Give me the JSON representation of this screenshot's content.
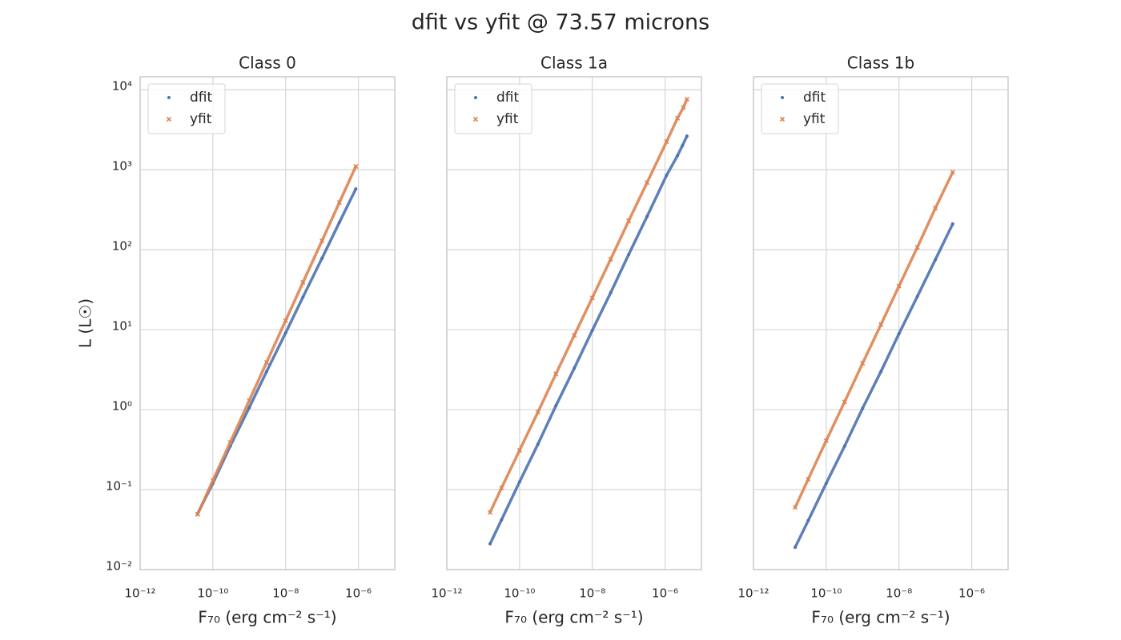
{
  "title": "dfit vs yfit @ 73.57 microns",
  "chart_data": [
    {
      "type": "scatter",
      "title": "Class 0",
      "xlabel": "F₇₀ (erg cm⁻² s⁻¹)",
      "ylabel": "L (L☉)",
      "xscale": "log",
      "yscale": "log",
      "grid": true,
      "legend": "upper left",
      "xlim": [
        1e-12,
        1e-05
      ],
      "ylim": [
        0.01,
        14500
      ],
      "xticks": [
        {
          "value": 1e-12,
          "label": "10⁻¹²"
        },
        {
          "value": 1e-10,
          "label": "10⁻¹⁰"
        },
        {
          "value": 1e-08,
          "label": "10⁻⁸"
        },
        {
          "value": 1e-06,
          "label": "10⁻⁶"
        }
      ],
      "yticks": [
        {
          "value": 0.01,
          "label": "10⁻²"
        },
        {
          "value": 0.1,
          "label": "10⁻¹"
        },
        {
          "value": 1,
          "label": "10⁰"
        },
        {
          "value": 10,
          "label": "10¹"
        },
        {
          "value": 100,
          "label": "10²"
        },
        {
          "value": 1000,
          "label": "10³"
        },
        {
          "value": 10000,
          "label": "10⁴"
        }
      ],
      "series": [
        {
          "name": "dfit",
          "color": "#4c72b0",
          "marker": "dot",
          "x": [
            3.8e-11,
            1e-10,
            3e-10,
            1e-09,
            3e-09,
            1e-08,
            3e-08,
            1e-07,
            3e-07,
            8.5e-07
          ],
          "values": [
            0.05,
            0.12,
            0.35,
            1.06,
            3.0,
            9.1,
            25.6,
            78,
            219,
            575
          ]
        },
        {
          "name": "yfit",
          "color": "#dd8452",
          "marker": "x",
          "x": [
            3.8e-11,
            1e-10,
            3e-10,
            1e-09,
            3e-09,
            1e-08,
            3e-08,
            1e-07,
            3e-07,
            8.5e-07
          ],
          "values": [
            0.049,
            0.13,
            0.39,
            1.3,
            3.9,
            13,
            39,
            129,
            389,
            1100
          ]
        }
      ]
    },
    {
      "type": "scatter",
      "title": "Class 1a",
      "xlabel": "F₇₀ (erg cm⁻² s⁻¹)",
      "xscale": "log",
      "yscale": "log",
      "grid": true,
      "legend": "upper left",
      "xlim": [
        1e-12,
        1e-05
      ],
      "ylim": [
        0.01,
        14500
      ],
      "xticks": [
        {
          "value": 1e-12,
          "label": "10⁻¹²"
        },
        {
          "value": 1e-10,
          "label": "10⁻¹⁰"
        },
        {
          "value": 1e-08,
          "label": "10⁻⁸"
        },
        {
          "value": 1e-06,
          "label": "10⁻⁶"
        }
      ],
      "yticks": [
        0.01,
        0.1,
        1,
        10,
        100,
        1000,
        10000
      ],
      "series": [
        {
          "name": "dfit",
          "color": "#4c72b0",
          "marker": "dot",
          "x": [
            1.55e-11,
            3.2e-11,
            1e-10,
            3.2e-10,
            1e-09,
            3.2e-09,
            1e-08,
            3.2e-08,
            1e-07,
            3.2e-07,
            1.1e-06,
            2.2e-06,
            3e-06,
            4e-06
          ],
          "values": [
            0.021,
            0.042,
            0.125,
            0.37,
            1.12,
            3.3,
            9.8,
            29,
            87,
            260,
            850,
            1500,
            2000,
            2630
          ]
        },
        {
          "name": "yfit",
          "color": "#dd8452",
          "marker": "x",
          "x": [
            1.55e-11,
            3.2e-11,
            1e-10,
            3.2e-10,
            1e-09,
            3.2e-09,
            1e-08,
            3.2e-08,
            1e-07,
            3.2e-07,
            1.1e-06,
            2.2e-06,
            3.2e-06,
            4e-06
          ],
          "values": [
            0.052,
            0.105,
            0.31,
            0.93,
            2.8,
            8.5,
            25,
            76,
            229,
            690,
            2240,
            4400,
            6000,
            7600
          ]
        }
      ]
    },
    {
      "type": "scatter",
      "title": "Class 1b",
      "xlabel": "F₇₀ (erg cm⁻² s⁻¹)",
      "xscale": "log",
      "yscale": "log",
      "grid": true,
      "legend": "upper left",
      "xlim": [
        1e-12,
        1e-05
      ],
      "ylim": [
        0.01,
        14500
      ],
      "xticks": [
        {
          "value": 1e-12,
          "label": "10⁻¹²"
        },
        {
          "value": 1e-10,
          "label": "10⁻¹⁰"
        },
        {
          "value": 1e-08,
          "label": "10⁻⁸"
        },
        {
          "value": 1e-06,
          "label": "10⁻⁶"
        }
      ],
      "yticks": [
        0.01,
        0.1,
        1,
        10,
        100,
        1000,
        10000
      ],
      "series": [
        {
          "name": "dfit",
          "color": "#4c72b0",
          "marker": "dot",
          "x": [
            1.4e-11,
            3.2e-11,
            1e-10,
            3.2e-10,
            1e-09,
            3.2e-09,
            1e-08,
            3.2e-08,
            1e-07,
            3e-07
          ],
          "values": [
            0.019,
            0.041,
            0.12,
            0.35,
            1.04,
            3.0,
            8.9,
            26,
            75,
            210
          ]
        },
        {
          "name": "yfit",
          "color": "#dd8452",
          "marker": "x",
          "x": [
            1.4e-11,
            3.2e-11,
            1e-10,
            3.2e-10,
            1e-09,
            3.2e-09,
            1e-08,
            3.2e-08,
            1e-07,
            3e-07
          ],
          "values": [
            0.06,
            0.135,
            0.41,
            1.25,
            3.8,
            11.6,
            35,
            107,
            330,
            930
          ]
        }
      ]
    }
  ]
}
